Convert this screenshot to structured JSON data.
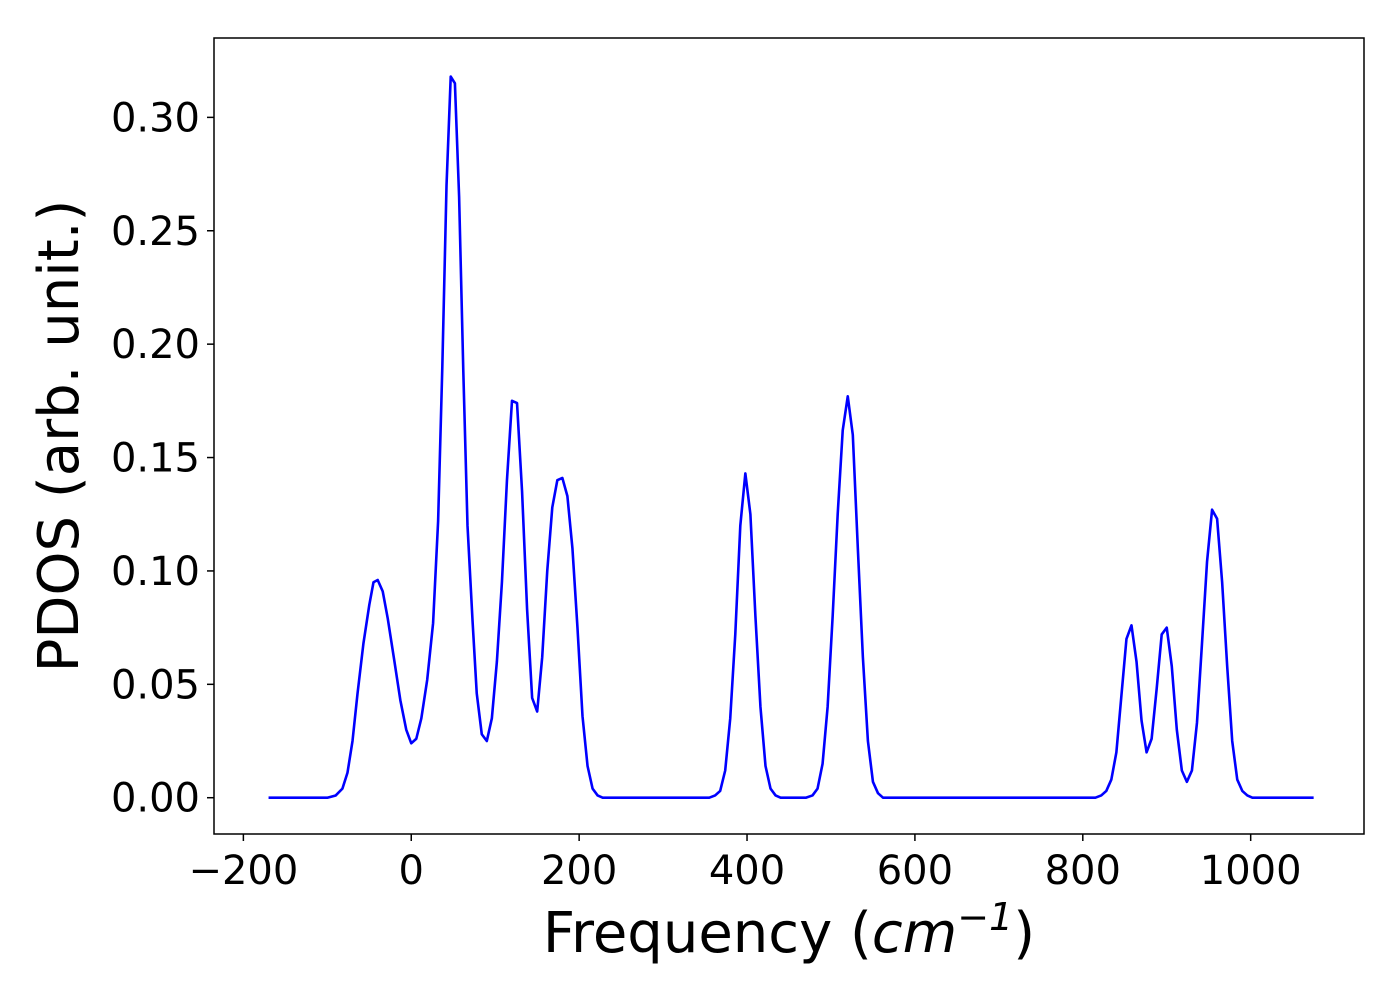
{
  "chart_data": {
    "type": "line",
    "title": "",
    "xlabel_prefix": "Frequency (",
    "xlabel_unit": "cm",
    "xlabel_exponent": "−1",
    "xlabel_suffix": ")",
    "ylabel": "PDOS (arb. unit.)",
    "xlim": [
      -235,
      1135
    ],
    "ylim": [
      -0.016,
      0.335
    ],
    "xticks": [
      -200,
      0,
      200,
      400,
      600,
      800,
      1000
    ],
    "xtick_labels": [
      "−200",
      "0",
      "200",
      "400",
      "600",
      "800",
      "1000"
    ],
    "yticks": [
      0.0,
      0.05,
      0.1,
      0.15,
      0.2,
      0.25,
      0.3
    ],
    "ytick_labels": [
      "0.00",
      "0.05",
      "0.10",
      "0.15",
      "0.20",
      "0.25",
      "0.30"
    ],
    "grid": false,
    "legend": "none",
    "series": [
      {
        "color": "#0000ff",
        "x": [
          -170,
          -100,
          -90,
          -82,
          -76,
          -70,
          -64,
          -57,
          -50,
          -45,
          -40,
          -34,
          -28,
          -20,
          -13,
          -6,
          0,
          6,
          12,
          19,
          26,
          32,
          37,
          42,
          47,
          52,
          57,
          62,
          67,
          73,
          78,
          84,
          90,
          96,
          102,
          108,
          114,
          120,
          126,
          132,
          138,
          144,
          150,
          156,
          162,
          168,
          174,
          180,
          186,
          192,
          198,
          204,
          210,
          216,
          222,
          228,
          234,
          240,
          260,
          300,
          355,
          362,
          368,
          374,
          380,
          386,
          392,
          398,
          404,
          410,
          416,
          422,
          428,
          434,
          440,
          470,
          478,
          484,
          490,
          496,
          502,
          508,
          514,
          520,
          526,
          532,
          538,
          544,
          550,
          556,
          562,
          568,
          574,
          600,
          700,
          815,
          822,
          828,
          834,
          840,
          846,
          852,
          858,
          864,
          870,
          876,
          882,
          888,
          894,
          900,
          906,
          912,
          918,
          924,
          930,
          936,
          942,
          948,
          954,
          960,
          966,
          972,
          978,
          984,
          990,
          996,
          1002,
          1010,
          1075
        ],
        "y": [
          0.0,
          0.0,
          0.001,
          0.004,
          0.011,
          0.025,
          0.046,
          0.068,
          0.085,
          0.095,
          0.096,
          0.091,
          0.079,
          0.06,
          0.043,
          0.03,
          0.024,
          0.026,
          0.035,
          0.052,
          0.077,
          0.122,
          0.19,
          0.27,
          0.318,
          0.315,
          0.265,
          0.188,
          0.12,
          0.078,
          0.046,
          0.028,
          0.025,
          0.035,
          0.06,
          0.095,
          0.14,
          0.175,
          0.174,
          0.135,
          0.083,
          0.044,
          0.038,
          0.062,
          0.1,
          0.128,
          0.14,
          0.141,
          0.133,
          0.11,
          0.075,
          0.036,
          0.014,
          0.004,
          0.001,
          0.0,
          0.0,
          0.0,
          0.0,
          0.0,
          0.0,
          0.001,
          0.003,
          0.012,
          0.035,
          0.072,
          0.12,
          0.143,
          0.125,
          0.08,
          0.04,
          0.014,
          0.004,
          0.001,
          0.0,
          0.0,
          0.001,
          0.004,
          0.015,
          0.04,
          0.08,
          0.125,
          0.162,
          0.177,
          0.16,
          0.11,
          0.062,
          0.025,
          0.007,
          0.002,
          0.0,
          0.0,
          0.0,
          0.0,
          0.0,
          0.0,
          0.001,
          0.003,
          0.008,
          0.02,
          0.045,
          0.07,
          0.076,
          0.06,
          0.034,
          0.02,
          0.026,
          0.048,
          0.072,
          0.075,
          0.058,
          0.03,
          0.012,
          0.007,
          0.012,
          0.033,
          0.068,
          0.104,
          0.127,
          0.123,
          0.095,
          0.058,
          0.025,
          0.008,
          0.003,
          0.001,
          0.0,
          0.0,
          0.0
        ]
      }
    ]
  }
}
